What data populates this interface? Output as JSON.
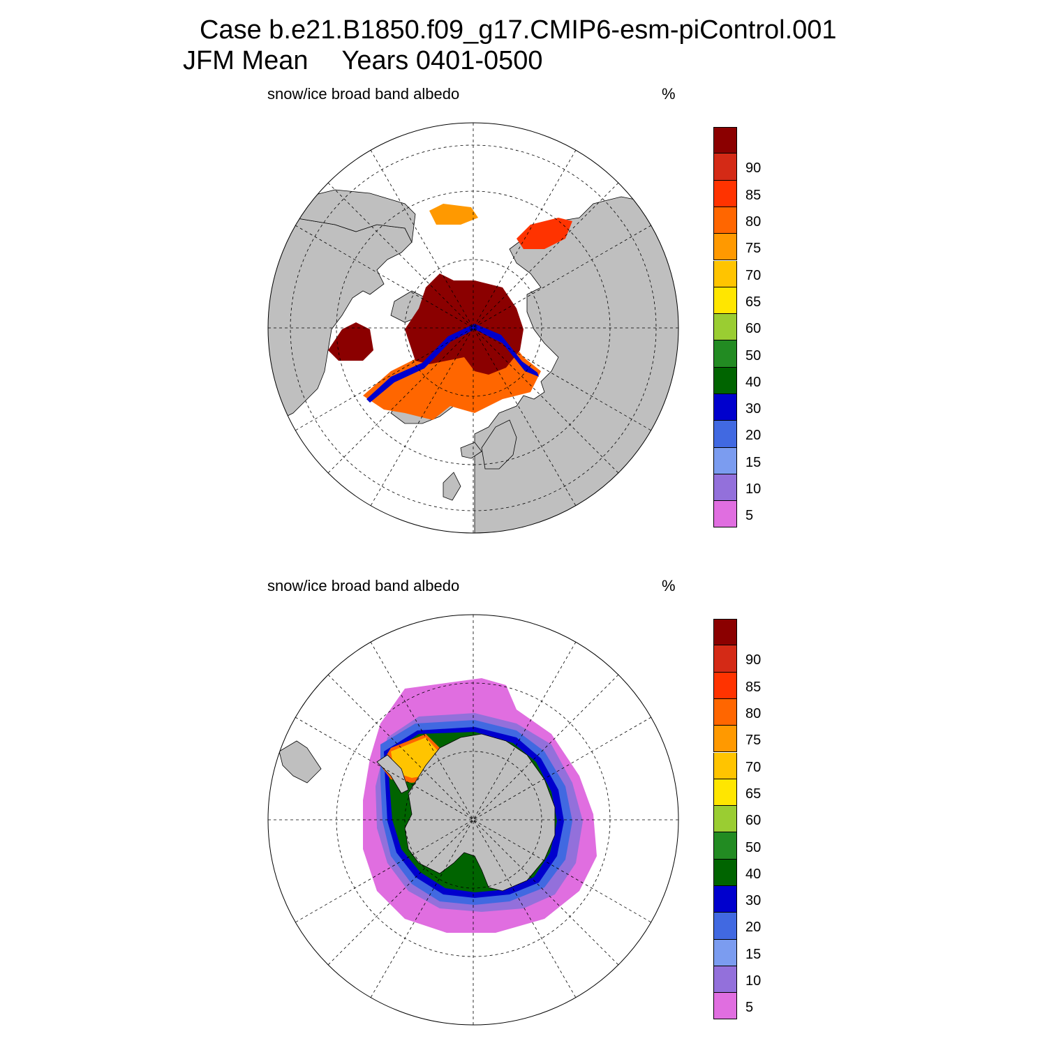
{
  "figure": {
    "case_line": "Case b.e21.B1850.f09_g17.CMIP6-esm-piControl.001",
    "season": "JFM Mean",
    "years": "Years 0401-0500"
  },
  "colors": {
    "land": "#bfbfbf",
    "ocean": "#ffffff",
    "grid": "#000000"
  },
  "colorbar": {
    "levels": [
      "5",
      "10",
      "15",
      "20",
      "30",
      "40",
      "50",
      "60",
      "65",
      "70",
      "75",
      "80",
      "85",
      "90"
    ],
    "colors": [
      "#e06ee0",
      "#9370db",
      "#7b9cf0",
      "#4169e1",
      "#0000cd",
      "#006400",
      "#228b22",
      "#9acd32",
      "#ffe600",
      "#ffc400",
      "#ff9900",
      "#ff6600",
      "#ff3300",
      "#d42a16",
      "#8b0000"
    ]
  },
  "panels": [
    {
      "id": "north",
      "variable": "snow/ice broad band albedo",
      "units": "%",
      "hemisphere": "Arctic"
    },
    {
      "id": "south",
      "variable": "snow/ice broad band albedo",
      "units": "%",
      "hemisphere": "Antarctic"
    }
  ],
  "chart_data": [
    {
      "type": "heatmap",
      "projection": "polar stereographic",
      "hemisphere": "north",
      "title": "snow/ice broad band albedo",
      "units": "%",
      "levels": [
        5,
        10,
        15,
        20,
        30,
        40,
        50,
        60,
        65,
        70,
        75,
        80,
        85,
        90
      ],
      "notes_regions": {
        "central_arctic": ">90",
        "ice_edge": "5-90 sharp gradient"
      }
    },
    {
      "type": "heatmap",
      "projection": "polar stereographic",
      "hemisphere": "south",
      "title": "snow/ice broad band albedo",
      "units": "%",
      "levels": [
        5,
        10,
        15,
        20,
        30,
        40,
        50,
        60,
        65,
        70,
        75,
        80,
        85,
        90
      ],
      "notes_regions": {
        "weddell_sea": "70-85",
        "outer_pack": "<5-20"
      }
    }
  ]
}
